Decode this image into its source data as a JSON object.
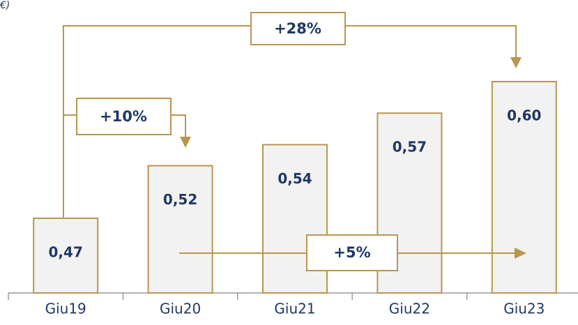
{
  "chart_data": {
    "type": "bar",
    "subtitle": "€)",
    "categories": [
      "Giu19",
      "Giu20",
      "Giu21",
      "Giu22",
      "Giu23"
    ],
    "values": [
      0.47,
      0.52,
      0.54,
      0.57,
      0.6
    ],
    "value_labels": [
      "0,47",
      "0,52",
      "0,54",
      "0,57",
      "0,60"
    ],
    "color": "#f2f2f2",
    "edge_color": "#b8964f",
    "ylim": [
      0.4,
      0.6
    ],
    "annotations": [
      "+28%",
      "+10%",
      "+5%"
    ]
  }
}
